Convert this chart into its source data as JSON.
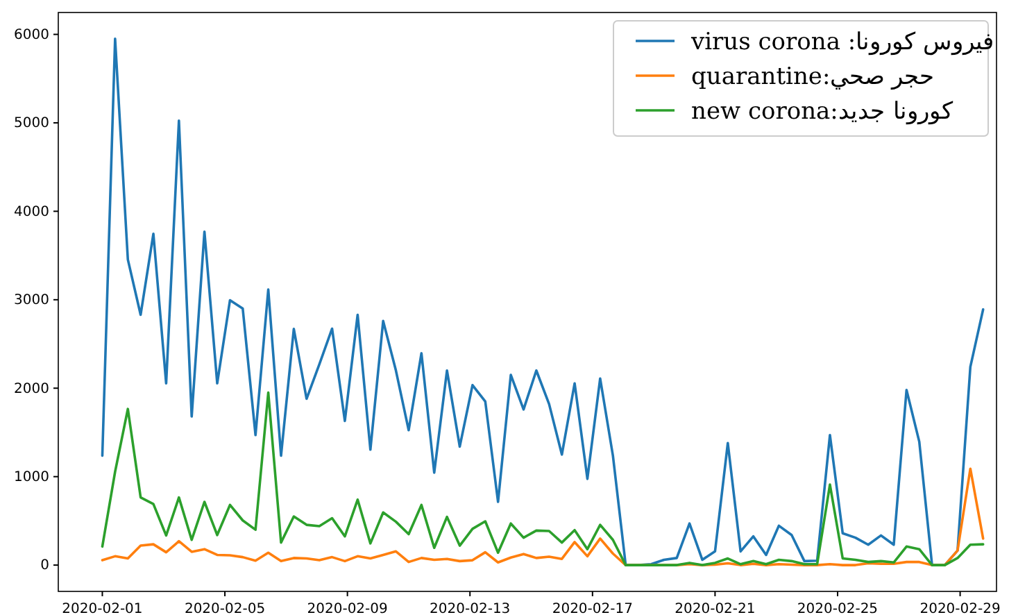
{
  "chart_data": {
    "type": "line",
    "x": [
      "2020-02-01T00:00",
      "2020-02-01T10:00",
      "2020-02-01T20:00",
      "2020-02-02T06:00",
      "2020-02-02T16:00",
      "2020-02-03T02:00",
      "2020-02-03T12:00",
      "2020-02-03T22:00",
      "2020-02-04T08:00",
      "2020-02-04T18:00",
      "2020-02-05T04:00",
      "2020-02-05T14:00",
      "2020-02-06T00:00",
      "2020-02-06T10:00",
      "2020-02-06T20:00",
      "2020-02-07T06:00",
      "2020-02-07T16:00",
      "2020-02-08T02:00",
      "2020-02-08T12:00",
      "2020-02-08T22:00",
      "2020-02-09T08:00",
      "2020-02-09T18:00",
      "2020-02-10T04:00",
      "2020-02-10T14:00",
      "2020-02-11T00:00",
      "2020-02-11T10:00",
      "2020-02-11T20:00",
      "2020-02-12T06:00",
      "2020-02-12T16:00",
      "2020-02-13T02:00",
      "2020-02-13T12:00",
      "2020-02-13T22:00",
      "2020-02-14T08:00",
      "2020-02-14T18:00",
      "2020-02-15T04:00",
      "2020-02-15T14:00",
      "2020-02-16T00:00",
      "2020-02-16T10:00",
      "2020-02-16T20:00",
      "2020-02-17T06:00",
      "2020-02-17T16:00",
      "2020-02-18T02:00",
      "2020-02-18T12:00",
      "2020-02-18T22:00",
      "2020-02-19T08:00",
      "2020-02-19T18:00",
      "2020-02-20T04:00",
      "2020-02-20T14:00",
      "2020-02-21T00:00",
      "2020-02-21T10:00",
      "2020-02-21T20:00",
      "2020-02-22T06:00",
      "2020-02-22T16:00",
      "2020-02-23T02:00",
      "2020-02-23T12:00",
      "2020-02-23T22:00",
      "2020-02-24T08:00",
      "2020-02-24T18:00",
      "2020-02-25T04:00",
      "2020-02-25T14:00",
      "2020-02-26T00:00",
      "2020-02-26T10:00",
      "2020-02-26T20:00",
      "2020-02-27T06:00",
      "2020-02-27T16:00",
      "2020-02-28T02:00",
      "2020-02-28T12:00",
      "2020-02-28T22:00",
      "2020-02-29T08:00",
      "2020-02-29T18:00"
    ],
    "series": [
      {
        "name": "virus corona :فيروس كورونا",
        "color": "#1f77b4",
        "values": [
          1237,
          5950,
          3455,
          2830,
          3745,
          2055,
          5025,
          1680,
          3770,
          2055,
          2995,
          2900,
          1470,
          3115,
          1237,
          2670,
          1880,
          2270,
          2673,
          1630,
          2830,
          1305,
          2760,
          2200,
          1525,
          2395,
          1045,
          2200,
          1340,
          2035,
          1850,
          715,
          2150,
          1760,
          2200,
          1820,
          1250,
          2055,
          975,
          2110,
          1237,
          0,
          0,
          10,
          60,
          80,
          470,
          60,
          155,
          1380,
          155,
          325,
          115,
          445,
          340,
          45,
          50,
          1470,
          360,
          310,
          230,
          335,
          230,
          1980,
          1395,
          0,
          0,
          165,
          2240,
          2890
        ]
      },
      {
        "name": "quarantine:حجر صحي",
        "color": "#ff7f0e",
        "values": [
          55,
          100,
          75,
          220,
          235,
          145,
          270,
          150,
          180,
          115,
          110,
          90,
          50,
          140,
          45,
          80,
          75,
          55,
          90,
          45,
          100,
          75,
          115,
          155,
          35,
          80,
          60,
          70,
          45,
          55,
          145,
          30,
          85,
          125,
          80,
          95,
          70,
          260,
          100,
          300,
          130,
          0,
          0,
          0,
          0,
          0,
          10,
          0,
          5,
          20,
          0,
          15,
          0,
          10,
          5,
          0,
          0,
          10,
          0,
          0,
          20,
          15,
          15,
          35,
          35,
          0,
          0,
          165,
          1090,
          300
        ]
      },
      {
        "name": "new corona:كورونا جديد",
        "color": "#2ca02c",
        "values": [
          210,
          1055,
          1765,
          765,
          690,
          335,
          765,
          285,
          715,
          340,
          680,
          505,
          400,
          1950,
          255,
          550,
          455,
          440,
          530,
          325,
          740,
          245,
          595,
          490,
          350,
          680,
          195,
          545,
          220,
          410,
          495,
          140,
          470,
          310,
          390,
          385,
          255,
          395,
          180,
          455,
          285,
          0,
          0,
          0,
          0,
          0,
          25,
          0,
          25,
          75,
          10,
          45,
          10,
          60,
          45,
          10,
          10,
          910,
          75,
          60,
          35,
          45,
          30,
          210,
          180,
          0,
          0,
          80,
          230,
          235
        ]
      }
    ],
    "xlim": [
      "2020-01-30T13:30",
      "2020-03-01T04:30"
    ],
    "xticks": [
      "2020-02-01",
      "2020-02-05",
      "2020-02-09",
      "2020-02-13",
      "2020-02-17",
      "2020-02-21",
      "2020-02-25",
      "2020-02-29"
    ],
    "ylim": [
      -297.5,
      6247.5
    ],
    "yticks": [
      0,
      1000,
      2000,
      3000,
      4000,
      5000,
      6000
    ],
    "legend": "top right"
  }
}
